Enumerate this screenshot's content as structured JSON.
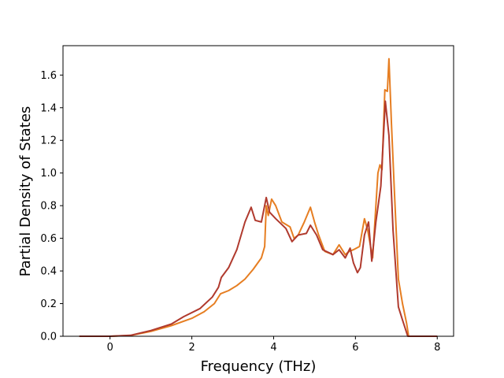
{
  "chart_data": {
    "type": "line",
    "title": "",
    "xlabel": "Frequency (THz)",
    "ylabel": "Partial Density of States",
    "xlim": [
      -1.15,
      8.4
    ],
    "ylim": [
      0.0,
      1.78
    ],
    "xticks": [
      0,
      2,
      4,
      6,
      8
    ],
    "yticks": [
      0.0,
      0.2,
      0.4,
      0.6,
      0.8,
      1.0,
      1.2,
      1.4,
      1.6
    ],
    "xtick_labels": [
      "0",
      "2",
      "4",
      "6",
      "8"
    ],
    "ytick_labels": [
      "0.0",
      "0.2",
      "0.4",
      "0.6",
      "0.8",
      "1.0",
      "1.2",
      "1.4",
      "1.6"
    ],
    "grid": false,
    "legend": false,
    "series": [
      {
        "color": "#e67e22",
        "points": [
          [
            -0.75,
            0.0
          ],
          [
            0.0,
            0.0
          ],
          [
            0.5,
            0.005
          ],
          [
            1.0,
            0.03
          ],
          [
            1.5,
            0.065
          ],
          [
            2.0,
            0.11
          ],
          [
            2.3,
            0.15
          ],
          [
            2.55,
            0.2
          ],
          [
            2.7,
            0.26
          ],
          [
            2.9,
            0.28
          ],
          [
            3.1,
            0.31
          ],
          [
            3.3,
            0.35
          ],
          [
            3.5,
            0.41
          ],
          [
            3.7,
            0.48
          ],
          [
            3.78,
            0.55
          ],
          [
            3.82,
            0.8
          ],
          [
            3.87,
            0.74
          ],
          [
            3.95,
            0.84
          ],
          [
            4.05,
            0.8
          ],
          [
            4.2,
            0.7
          ],
          [
            4.4,
            0.67
          ],
          [
            4.5,
            0.6
          ],
          [
            4.6,
            0.62
          ],
          [
            4.75,
            0.7
          ],
          [
            4.9,
            0.79
          ],
          [
            5.0,
            0.7
          ],
          [
            5.1,
            0.62
          ],
          [
            5.25,
            0.52
          ],
          [
            5.45,
            0.5
          ],
          [
            5.6,
            0.56
          ],
          [
            5.75,
            0.5
          ],
          [
            5.85,
            0.52
          ],
          [
            5.95,
            0.53
          ],
          [
            6.1,
            0.55
          ],
          [
            6.22,
            0.72
          ],
          [
            6.3,
            0.65
          ],
          [
            6.42,
            0.48
          ],
          [
            6.55,
            1.0
          ],
          [
            6.6,
            1.05
          ],
          [
            6.65,
            1.02
          ],
          [
            6.72,
            1.51
          ],
          [
            6.78,
            1.5
          ],
          [
            6.82,
            1.7
          ],
          [
            6.88,
            1.3
          ],
          [
            6.95,
            0.9
          ],
          [
            7.05,
            0.35
          ],
          [
            7.15,
            0.2
          ],
          [
            7.25,
            0.08
          ],
          [
            7.3,
            0.0
          ],
          [
            8.0,
            0.0
          ]
        ]
      },
      {
        "color": "#b03a2e",
        "points": [
          [
            -0.75,
            0.0
          ],
          [
            0.0,
            0.0
          ],
          [
            0.5,
            0.006
          ],
          [
            1.0,
            0.035
          ],
          [
            1.5,
            0.075
          ],
          [
            1.8,
            0.12
          ],
          [
            2.2,
            0.17
          ],
          [
            2.5,
            0.24
          ],
          [
            2.65,
            0.3
          ],
          [
            2.72,
            0.36
          ],
          [
            2.9,
            0.42
          ],
          [
            3.1,
            0.53
          ],
          [
            3.3,
            0.7
          ],
          [
            3.45,
            0.79
          ],
          [
            3.55,
            0.71
          ],
          [
            3.7,
            0.7
          ],
          [
            3.82,
            0.85
          ],
          [
            3.9,
            0.76
          ],
          [
            4.05,
            0.72
          ],
          [
            4.3,
            0.66
          ],
          [
            4.45,
            0.58
          ],
          [
            4.6,
            0.62
          ],
          [
            4.8,
            0.63
          ],
          [
            4.9,
            0.68
          ],
          [
            5.05,
            0.62
          ],
          [
            5.2,
            0.53
          ],
          [
            5.45,
            0.5
          ],
          [
            5.6,
            0.53
          ],
          [
            5.75,
            0.48
          ],
          [
            5.87,
            0.54
          ],
          [
            5.95,
            0.45
          ],
          [
            6.05,
            0.39
          ],
          [
            6.12,
            0.42
          ],
          [
            6.22,
            0.62
          ],
          [
            6.32,
            0.7
          ],
          [
            6.4,
            0.46
          ],
          [
            6.5,
            0.7
          ],
          [
            6.62,
            0.92
          ],
          [
            6.73,
            1.44
          ],
          [
            6.82,
            1.23
          ],
          [
            6.92,
            0.65
          ],
          [
            7.05,
            0.18
          ],
          [
            7.15,
            0.1
          ],
          [
            7.28,
            0.0
          ],
          [
            8.0,
            0.0
          ]
        ]
      }
    ]
  }
}
